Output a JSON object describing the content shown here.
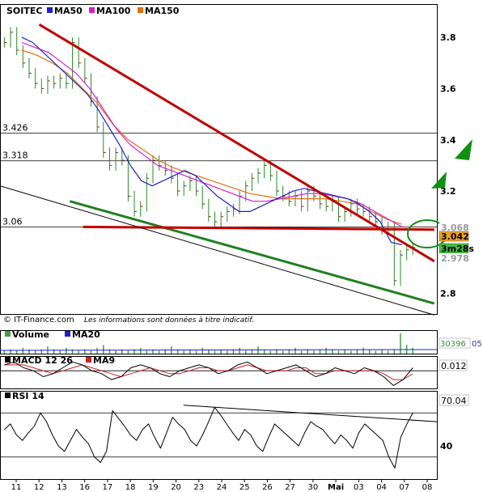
{
  "chart_data": [
    {
      "type": "line",
      "panel": "price",
      "symbol": "SOITEC",
      "legend": [
        {
          "name": "MA50",
          "color": "#1f1fd0"
        },
        {
          "name": "MA100",
          "color": "#d020d0"
        },
        {
          "name": "MA150",
          "color": "#e07010"
        }
      ],
      "ylim": [
        2.72,
        3.93
      ],
      "y_ticks": [
        "2.8",
        "3.2",
        "3.4",
        "3.6",
        "3.8"
      ],
      "horizontal_levels": [
        {
          "value": 3.426,
          "label": "3.426"
        },
        {
          "value": 3.318,
          "label": "3.318"
        },
        {
          "value": 3.06,
          "label": "3.06"
        }
      ],
      "price_tags": [
        {
          "label": "3.068",
          "color": "#ffffff"
        },
        {
          "label": "3.042",
          "color": "#f0a020"
        },
        {
          "label": "3m28s",
          "color": "#40c040"
        },
        {
          "label": "2.978",
          "color": "#ffffff"
        }
      ],
      "trendlines": [
        {
          "name": "resistance",
          "color": "#c00000",
          "from": {
            "x": 0.09,
            "y": 3.85
          },
          "to": {
            "x": 0.92,
            "y": 2.97
          }
        },
        {
          "name": "support",
          "color": "#208020",
          "from": {
            "x": 0.16,
            "y": 3.16
          },
          "to": {
            "x": 0.92,
            "y": 2.78
          }
        },
        {
          "name": "horizontal-support",
          "color": "#c00000",
          "from": {
            "x": 0.19,
            "y": 3.06
          },
          "to": {
            "x": 0.92,
            "y": 3.05
          }
        },
        {
          "name": "long-downtrend",
          "color": "#000000",
          "from": {
            "x": 0.0,
            "y": 3.22
          },
          "to": {
            "x": 0.92,
            "y": 2.74
          }
        }
      ],
      "price_series": [
        3.78,
        3.82,
        3.75,
        3.7,
        3.66,
        3.62,
        3.6,
        3.63,
        3.62,
        3.64,
        3.62,
        3.78,
        3.7,
        3.64,
        3.55,
        3.45,
        3.35,
        3.3,
        3.35,
        3.32,
        3.18,
        3.12,
        3.14,
        3.25,
        3.32,
        3.3,
        3.28,
        3.25,
        3.2,
        3.22,
        3.24,
        3.2,
        3.15,
        3.1,
        3.08,
        3.1,
        3.12,
        3.13,
        3.18,
        3.22,
        3.25,
        3.27,
        3.3,
        3.26,
        3.2,
        3.18,
        3.16,
        3.18,
        3.14,
        3.2,
        3.18,
        3.15,
        3.14,
        3.16,
        3.1,
        3.12,
        3.15,
        3.13,
        3.12,
        3.1,
        3.08,
        3.05,
        3.06,
        2.85,
        2.95,
        2.97,
        2.98
      ],
      "ma50": [
        3.8,
        3.78,
        3.74,
        3.7,
        3.66,
        3.62,
        3.58,
        3.52,
        3.45,
        3.38,
        3.3,
        3.24,
        3.22,
        3.24,
        3.26,
        3.28,
        3.26,
        3.22,
        3.18,
        3.15,
        3.12,
        3.12,
        3.14,
        3.16,
        3.18,
        3.2,
        3.21,
        3.2,
        3.19,
        3.18,
        3.17,
        3.15,
        3.12,
        3.08,
        3.0,
        2.99
      ],
      "ma100": [
        3.78,
        3.76,
        3.74,
        3.7,
        3.66,
        3.6,
        3.52,
        3.44,
        3.38,
        3.34,
        3.3,
        3.28,
        3.26,
        3.24,
        3.22,
        3.2,
        3.18,
        3.16,
        3.16,
        3.17,
        3.18,
        3.19,
        3.19,
        3.18,
        3.17,
        3.15,
        3.12,
        3.09,
        3.06
      ],
      "ma150": [
        3.75,
        3.73,
        3.7,
        3.66,
        3.6,
        3.54,
        3.46,
        3.4,
        3.36,
        3.32,
        3.29,
        3.27,
        3.25,
        3.23,
        3.21,
        3.19,
        3.18,
        3.17,
        3.17,
        3.17,
        3.17,
        3.16,
        3.15,
        3.12,
        3.09,
        3.07
      ],
      "watermark": "© IT-Finance.com",
      "watermark_note": "Les informations sont données à titre indicatif."
    },
    {
      "type": "bar",
      "panel": "volume",
      "legend": [
        {
          "name": "Volume",
          "color": "#40a040"
        },
        {
          "name": "MA20",
          "color": "#1f1fd0"
        }
      ],
      "value_tag": "30396",
      "value_tag_suffix": "05",
      "values": [
        2,
        3,
        2,
        4,
        3,
        2,
        3,
        5,
        3,
        2,
        4,
        3,
        2,
        3,
        2,
        4,
        6,
        3,
        2,
        3,
        2,
        3,
        4,
        2,
        3,
        2,
        3,
        5,
        3,
        2,
        3,
        2,
        4,
        3,
        2,
        3,
        2,
        3,
        4,
        2,
        3,
        5,
        3,
        2,
        3,
        2,
        3,
        4,
        2,
        3,
        2,
        3,
        4,
        3,
        2,
        3,
        2,
        3,
        4,
        3,
        2,
        3,
        2,
        3,
        14,
        6,
        4
      ]
    },
    {
      "type": "line",
      "panel": "macd",
      "legend": [
        {
          "name": "MACD 12 26",
          "color": "#000000"
        },
        {
          "name": "MA9",
          "color": "#d02020"
        }
      ],
      "value_tag": "0.012",
      "macd": [
        0.02,
        0.03,
        0.01,
        0.0,
        -0.02,
        -0.01,
        0.01,
        0.03,
        0.02,
        0.0,
        -0.01,
        -0.03,
        -0.02,
        0.01,
        0.02,
        0.01,
        -0.01,
        -0.02,
        0.0,
        0.01,
        0.02,
        0.01,
        -0.01,
        0.0,
        0.02,
        0.03,
        0.01,
        -0.01,
        0.0,
        0.01,
        0.02,
        0.0,
        -0.02,
        -0.01,
        0.01,
        0.0,
        -0.01,
        0.01,
        0.0,
        -0.02,
        -0.05,
        -0.03,
        0.01
      ],
      "ma9": [
        0.02,
        0.02,
        0.02,
        0.01,
        0.0,
        -0.01,
        0.0,
        0.01,
        0.02,
        0.01,
        0.0,
        -0.01,
        -0.02,
        -0.01,
        0.0,
        0.01,
        0.0,
        -0.01,
        -0.01,
        0.0,
        0.01,
        0.01,
        0.0,
        0.0,
        0.01,
        0.02,
        0.01,
        0.0,
        0.0,
        0.0,
        0.01,
        0.01,
        -0.01,
        -0.01,
        0.0,
        0.0,
        0.0,
        0.0,
        0.0,
        -0.01,
        -0.03,
        -0.03,
        -0.01
      ]
    },
    {
      "type": "line",
      "panel": "rsi",
      "legend": [
        {
          "name": "RSI 14",
          "color": "#000000"
        }
      ],
      "value_tag": "70.04",
      "y_ticks": [
        "40"
      ],
      "levels": [
        30,
        70
      ],
      "ylim": [
        10,
        90
      ],
      "values": [
        55,
        60,
        50,
        45,
        52,
        58,
        70,
        62,
        50,
        40,
        35,
        45,
        55,
        48,
        42,
        30,
        25,
        35,
        72,
        65,
        58,
        50,
        45,
        55,
        60,
        48,
        38,
        52,
        66,
        60,
        55,
        45,
        40,
        50,
        62,
        75,
        68,
        60,
        52,
        45,
        55,
        50,
        40,
        35,
        48,
        60,
        55,
        50,
        45,
        40,
        52,
        62,
        58,
        55,
        48,
        42,
        50,
        45,
        38,
        52,
        60,
        55,
        50,
        45,
        30,
        20,
        48,
        60,
        70
      ],
      "trendline": {
        "from": {
          "x": 0.42,
          "y": 77
        },
        "to": {
          "x": 0.93,
          "y": 62
        }
      }
    }
  ],
  "x_axis": {
    "labels": [
      "11",
      "12",
      "13",
      "16",
      "17",
      "18",
      "19",
      "20",
      "23",
      "24",
      "25",
      "26",
      "27",
      "30",
      "Mai",
      "03",
      "04",
      "07",
      "08"
    ]
  },
  "overlays": {
    "arrows": [
      {
        "name": "green-up-arrow-large",
        "color": "#109010"
      },
      {
        "name": "green-up-arrow-small",
        "color": "#109010"
      }
    ],
    "circle": {
      "name": "green-ellipse",
      "color": "#109010"
    }
  }
}
